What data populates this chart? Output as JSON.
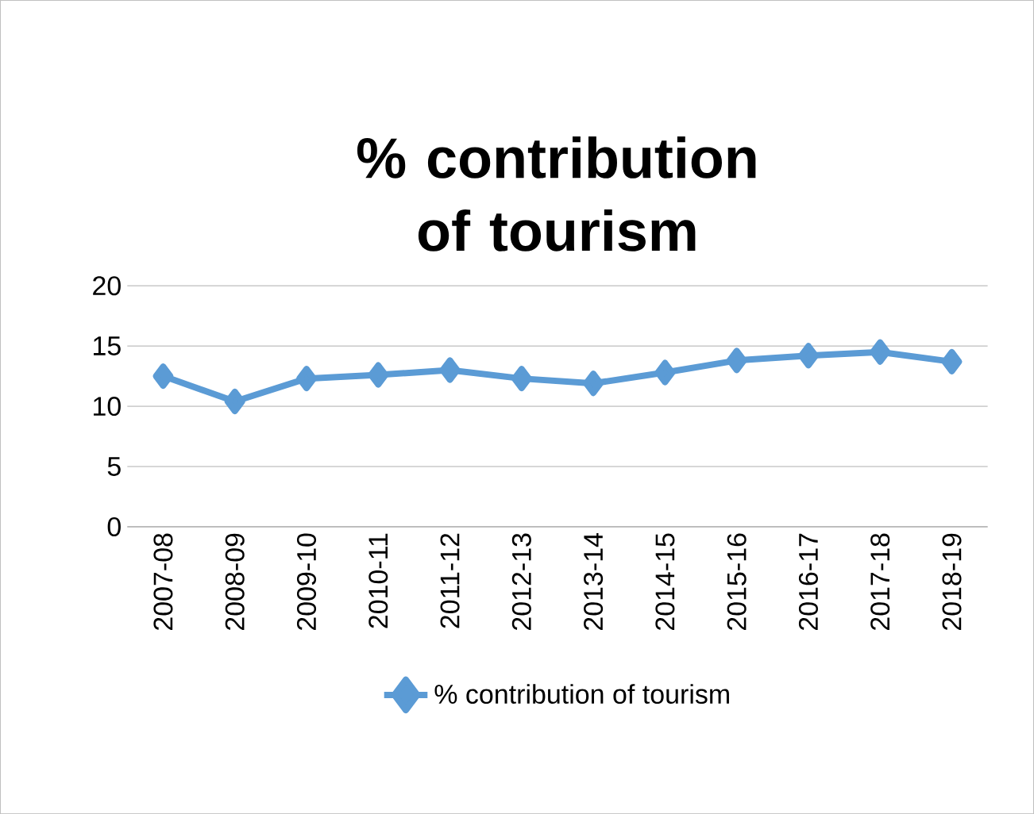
{
  "chart_data": {
    "type": "line",
    "title": "% contribution of tourism",
    "categories": [
      "2007-08",
      "2008-09",
      "2009-10",
      "2010-11",
      "2011-12",
      "2012-13",
      "2013-14",
      "2014-15",
      "2015-16",
      "2016-17",
      "2017-18",
      "2018-19"
    ],
    "series": [
      {
        "name": "% contribution of tourism",
        "color": "#5b9bd5",
        "values": [
          12.5,
          10.4,
          12.3,
          12.6,
          13.0,
          12.3,
          11.9,
          12.8,
          13.8,
          14.2,
          14.5,
          13.7
        ]
      }
    ],
    "ylim": [
      0,
      20
    ],
    "yticks": [
      0,
      5,
      10,
      15,
      20
    ],
    "grid": "y",
    "legend": "bottom",
    "marker": "diamond",
    "line_style": "solid"
  }
}
